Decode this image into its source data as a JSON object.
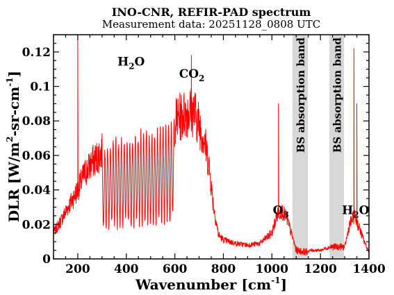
{
  "chart_data": {
    "type": "line",
    "title": "INO-CNR, REFIR-PAD spectrum",
    "subtitle": "Measurement data: 20251128_0808 UTC",
    "xlabel": {
      "main": "Wavenumber [cm",
      "sup": "-1",
      "tail": "]"
    },
    "ylabel": {
      "a": "DLR [W/m",
      "sup1": "2",
      "b": "-sr-cm",
      "sup2": "-1",
      "c": "]"
    },
    "xlim": [
      100,
      1400
    ],
    "ylim": [
      0,
      0.13
    ],
    "xticks": [
      200,
      400,
      600,
      800,
      1000,
      1200,
      1400
    ],
    "xtick_labels": [
      "200",
      "400",
      "600",
      "800",
      "1000",
      "1200",
      "1400"
    ],
    "yticks": [
      0,
      0.02,
      0.04,
      0.06,
      0.08,
      0.1,
      0.12
    ],
    "ytick_labels": [
      "0",
      "0.02",
      "0.04",
      "0.06",
      "0.08",
      "0.1",
      "0.12"
    ],
    "grid": false,
    "series": [
      {
        "color": "#ff0000",
        "x": [
          100,
          130,
          160,
          200,
          230,
          260,
          300,
          330,
          360,
          400,
          430,
          460,
          500,
          530,
          560,
          600,
          620,
          640,
          660,
          680,
          700,
          720,
          740,
          760,
          780,
          800,
          850,
          900,
          950,
          1000,
          1020,
          1040,
          1060,
          1080,
          1100,
          1140,
          1160,
          1200,
          1240,
          1300,
          1320,
          1340,
          1360,
          1380,
          1400
        ],
        "y": [
          0.015,
          0.022,
          0.03,
          0.04,
          0.05,
          0.056,
          0.062,
          0.066,
          0.068,
          0.068,
          0.069,
          0.072,
          0.072,
          0.074,
          0.076,
          0.08,
          0.082,
          0.084,
          0.086,
          0.085,
          0.078,
          0.07,
          0.055,
          0.03,
          0.014,
          0.011,
          0.009,
          0.008,
          0.009,
          0.015,
          0.025,
          0.028,
          0.024,
          0.015,
          0.005,
          0.004,
          0.005,
          0.005,
          0.007,
          0.007,
          0.02,
          0.025,
          0.018,
          0.01,
          0.004
        ]
      }
    ],
    "bands": [
      {
        "x0": 1085,
        "x1": 1148,
        "label": "BS absorption band"
      },
      {
        "x0": 1237,
        "x1": 1297,
        "label": "BS absorption band"
      }
    ],
    "annotations": [
      {
        "x": 420,
        "y": 0.112,
        "main": "H",
        "sub": "2",
        "tail": "O"
      },
      {
        "x": 670,
        "y": 0.105,
        "main": "CO",
        "sub": "2",
        "tail": ""
      },
      {
        "x": 1037,
        "y": 0.026,
        "main": "O",
        "sub": "3",
        "tail": ""
      },
      {
        "x": 1345,
        "y": 0.026,
        "main": "H",
        "sub": "2",
        "tail": "O"
      }
    ]
  }
}
